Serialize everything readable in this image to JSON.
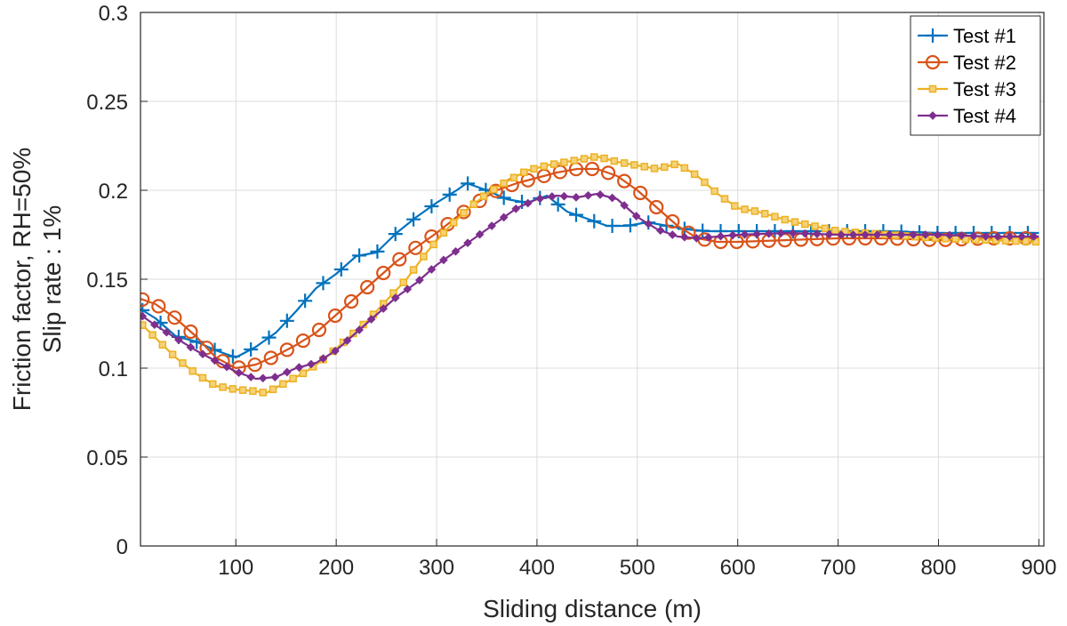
{
  "chart_data": {
    "type": "line",
    "title": "",
    "xlabel": "Sliding distance (m)",
    "ylabel_lines": [
      "Friction factor, RH=50%",
      "Slip rate : 1%"
    ],
    "xlim": [
      5,
      905
    ],
    "ylim": [
      0,
      0.3
    ],
    "x_ticks": [
      100,
      200,
      300,
      400,
      500,
      600,
      700,
      800,
      900
    ],
    "y_ticks": [
      0,
      0.05,
      0.1,
      0.15,
      0.2,
      0.25,
      0.3
    ],
    "y_tick_labels": [
      "0",
      "0.05",
      "0.1",
      "0.15",
      "0.2",
      "0.25",
      "0.3"
    ],
    "grid": true,
    "legend_position": "top-right",
    "series": [
      {
        "name": "Test #1",
        "color": "#0072BD",
        "marker": "plus",
        "x": [
          0,
          20,
          40,
          60,
          80,
          100,
          120,
          140,
          160,
          180,
          200,
          220,
          240,
          260,
          280,
          300,
          320,
          330,
          350,
          370,
          390,
          410,
          430,
          450,
          470,
          490,
          510,
          530,
          550,
          570,
          600,
          650,
          700,
          750,
          800,
          850,
          900
        ],
        "y": [
          0.135,
          0.128,
          0.118,
          0.115,
          0.11,
          0.106,
          0.112,
          0.12,
          0.132,
          0.145,
          0.153,
          0.163,
          0.165,
          0.176,
          0.185,
          0.193,
          0.2,
          0.204,
          0.2,
          0.195,
          0.193,
          0.197,
          0.188,
          0.184,
          0.18,
          0.18,
          0.182,
          0.18,
          0.178,
          0.177,
          0.177,
          0.177,
          0.177,
          0.177,
          0.176,
          0.176,
          0.176
        ]
      },
      {
        "name": "Test #2",
        "color": "#D95319",
        "marker": "circle",
        "x": [
          0,
          20,
          40,
          60,
          80,
          100,
          120,
          140,
          160,
          180,
          200,
          220,
          240,
          260,
          280,
          300,
          320,
          340,
          360,
          380,
          400,
          420,
          440,
          460,
          480,
          500,
          520,
          540,
          560,
          580,
          600,
          650,
          700,
          750,
          800,
          850,
          900
        ],
        "y": [
          0.14,
          0.136,
          0.128,
          0.118,
          0.106,
          0.1,
          0.102,
          0.107,
          0.113,
          0.12,
          0.13,
          0.14,
          0.15,
          0.16,
          0.168,
          0.176,
          0.185,
          0.193,
          0.2,
          0.204,
          0.207,
          0.21,
          0.212,
          0.212,
          0.208,
          0.2,
          0.19,
          0.18,
          0.173,
          0.171,
          0.171,
          0.172,
          0.173,
          0.173,
          0.172,
          0.173,
          0.173
        ]
      },
      {
        "name": "Test #3",
        "color": "#EDB120",
        "marker": "square",
        "x": [
          0,
          20,
          40,
          60,
          80,
          100,
          120,
          130,
          150,
          170,
          190,
          210,
          230,
          250,
          270,
          290,
          310,
          330,
          350,
          370,
          390,
          410,
          430,
          450,
          460,
          480,
          500,
          520,
          540,
          560,
          580,
          600,
          620,
          650,
          700,
          750,
          800,
          850,
          900
        ],
        "y": [
          0.128,
          0.117,
          0.106,
          0.097,
          0.09,
          0.088,
          0.087,
          0.086,
          0.092,
          0.098,
          0.106,
          0.116,
          0.126,
          0.138,
          0.15,
          0.165,
          0.178,
          0.189,
          0.198,
          0.205,
          0.211,
          0.214,
          0.216,
          0.218,
          0.219,
          0.216,
          0.214,
          0.212,
          0.215,
          0.208,
          0.198,
          0.19,
          0.188,
          0.183,
          0.177,
          0.175,
          0.173,
          0.172,
          0.171
        ]
      },
      {
        "name": "Test #4",
        "color": "#7E2F8E",
        "marker": "diamond",
        "x": [
          0,
          20,
          40,
          60,
          80,
          100,
          120,
          140,
          160,
          180,
          200,
          220,
          240,
          260,
          280,
          300,
          320,
          340,
          360,
          380,
          400,
          420,
          440,
          460,
          480,
          500,
          520,
          540,
          560,
          580,
          600,
          650,
          700,
          750,
          800,
          850,
          900
        ],
        "y": [
          0.132,
          0.124,
          0.117,
          0.11,
          0.104,
          0.098,
          0.094,
          0.095,
          0.1,
          0.103,
          0.11,
          0.12,
          0.13,
          0.14,
          0.148,
          0.158,
          0.166,
          0.174,
          0.182,
          0.19,
          0.195,
          0.197,
          0.196,
          0.198,
          0.195,
          0.185,
          0.178,
          0.174,
          0.173,
          0.174,
          0.175,
          0.176,
          0.175,
          0.175,
          0.175,
          0.174,
          0.174
        ]
      }
    ]
  }
}
